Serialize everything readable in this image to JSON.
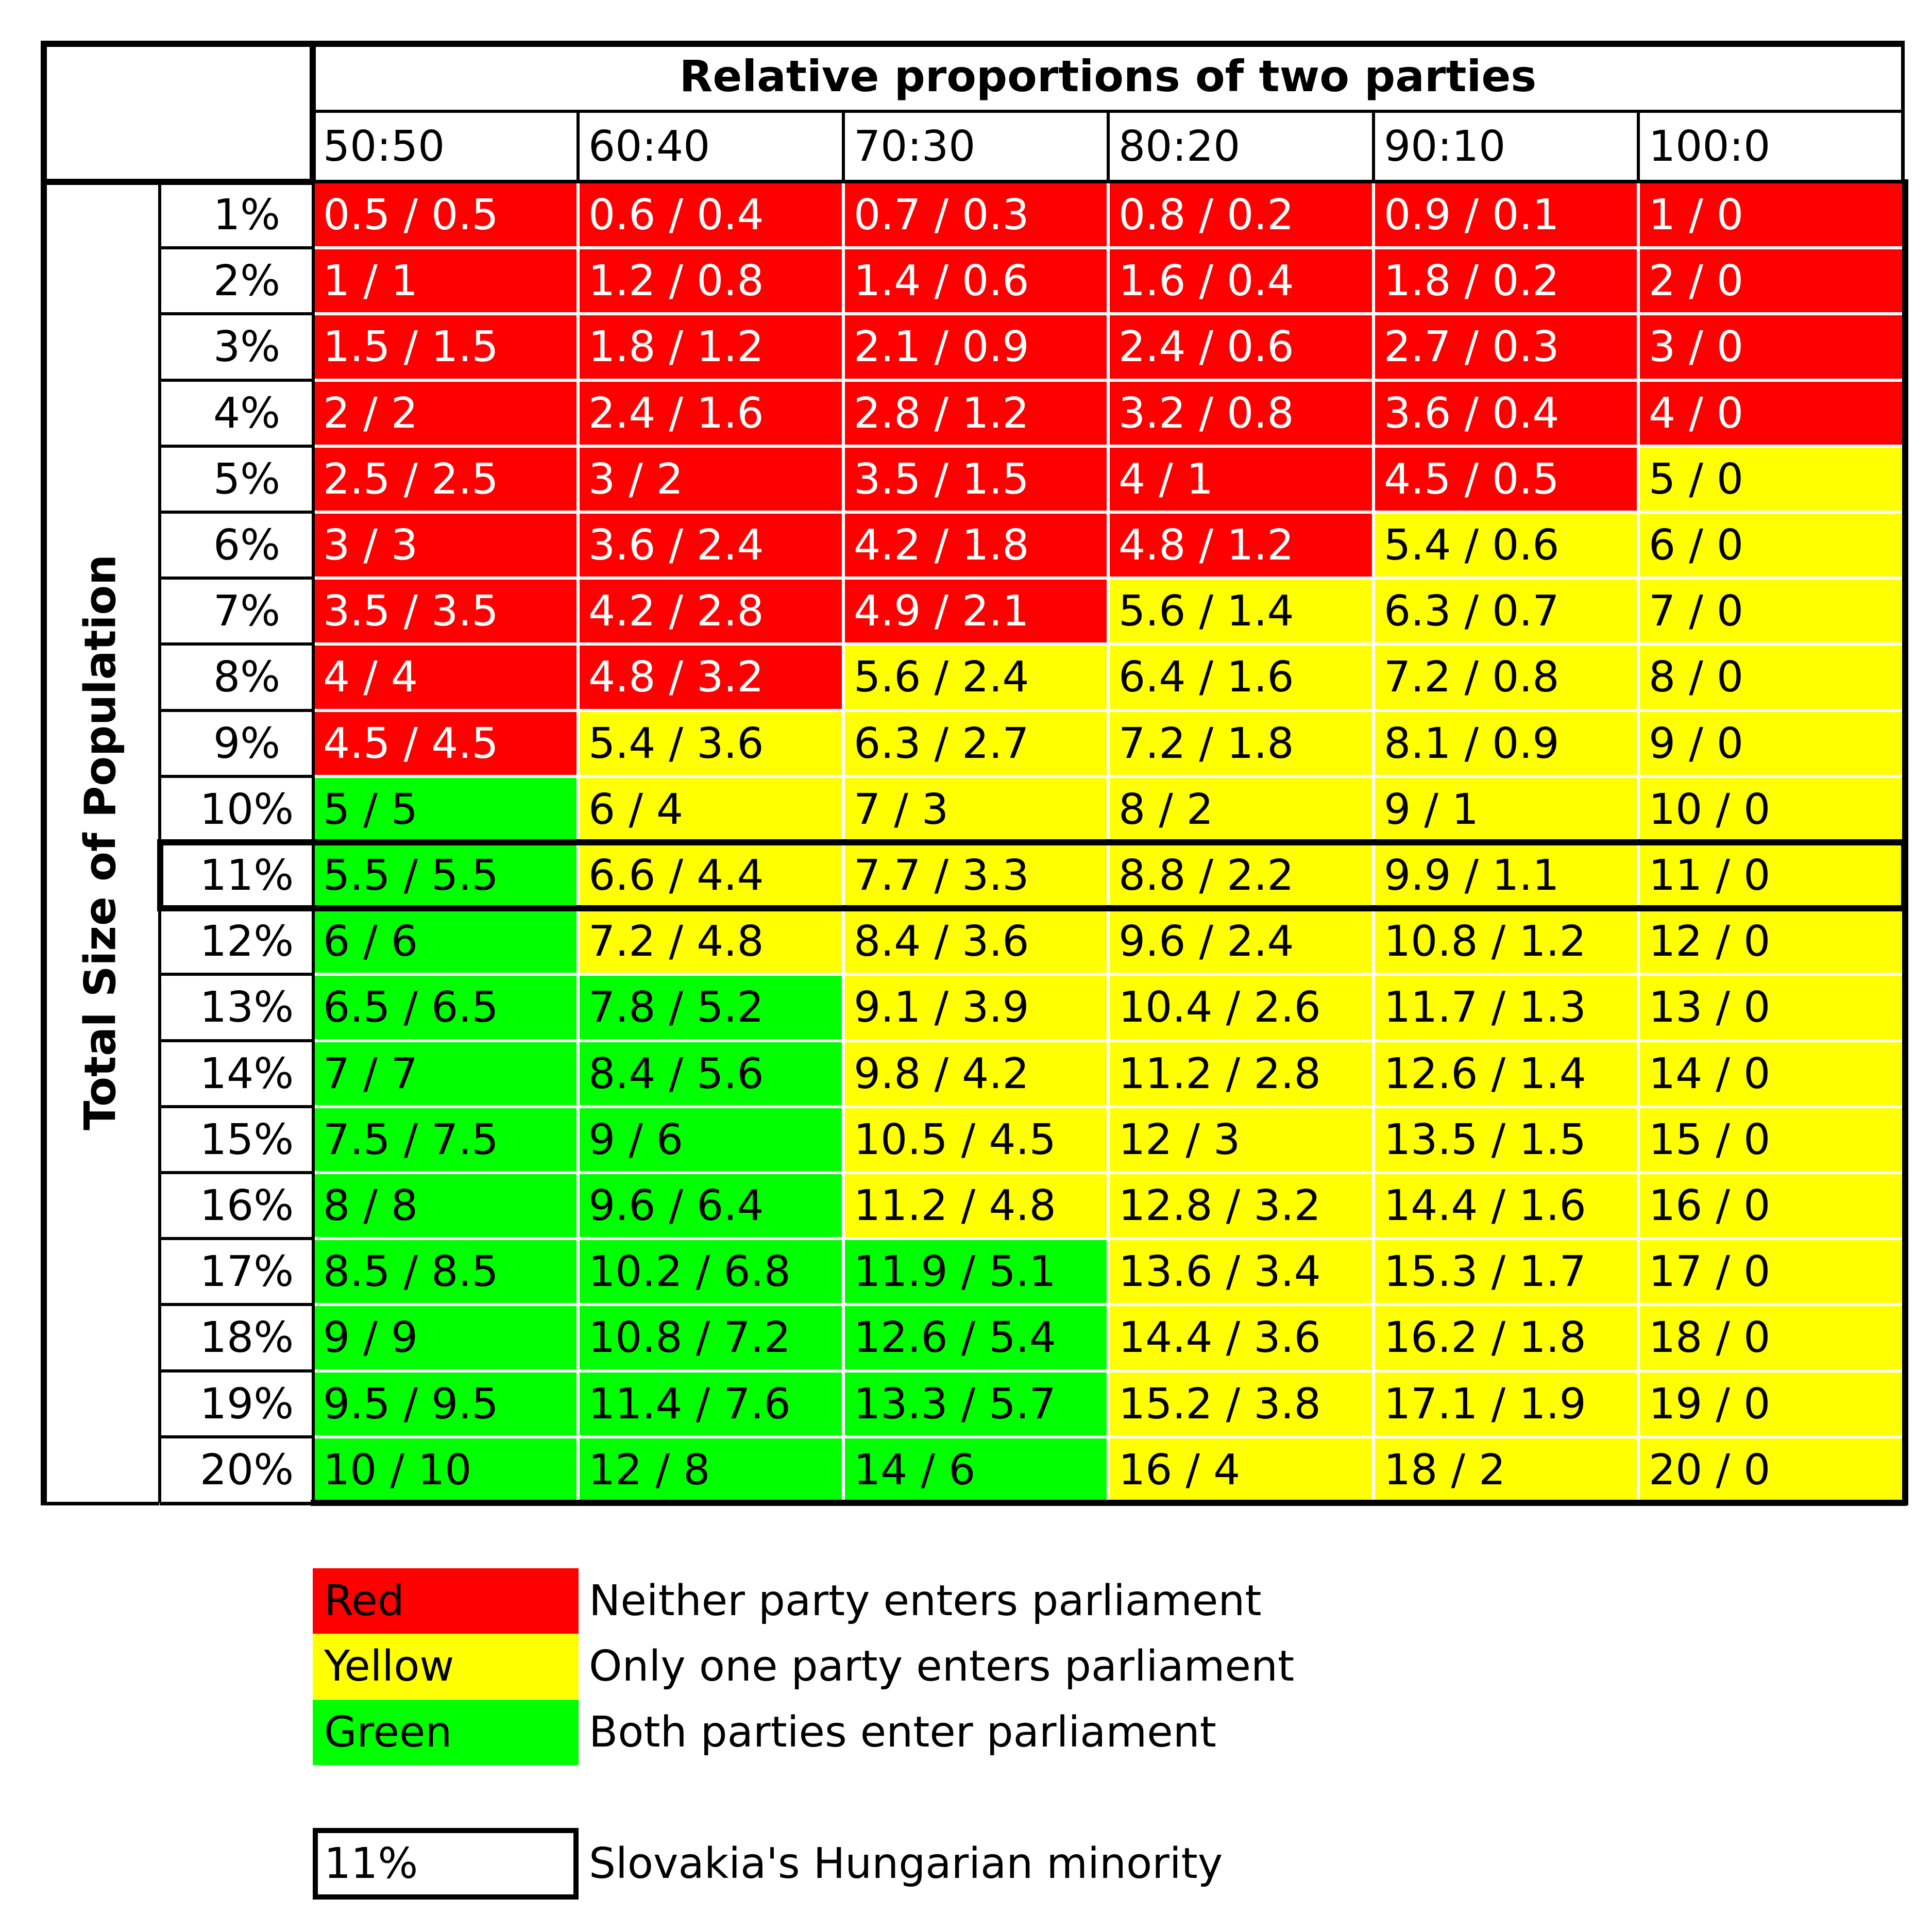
{
  "chart_data": {
    "type": "table",
    "title": "Relative proportions of two parties",
    "row_axis_label": "Total Size of Population",
    "columns": [
      "50:50",
      "60:40",
      "70:30",
      "80:20",
      "90:10",
      "100:0"
    ],
    "rows": [
      "1%",
      "2%",
      "3%",
      "4%",
      "5%",
      "6%",
      "7%",
      "8%",
      "9%",
      "10%",
      "11%",
      "12%",
      "13%",
      "14%",
      "15%",
      "16%",
      "17%",
      "18%",
      "19%",
      "20%"
    ],
    "cells": [
      [
        "0.5 / 0.5",
        "0.6 / 0.4",
        "0.7 / 0.3",
        "0.8 / 0.2",
        "0.9 / 0.1",
        "1 / 0"
      ],
      [
        "1 / 1",
        "1.2 / 0.8",
        "1.4 / 0.6",
        "1.6 / 0.4",
        "1.8 / 0.2",
        "2 / 0"
      ],
      [
        "1.5 / 1.5",
        "1.8 / 1.2",
        "2.1 / 0.9",
        "2.4 / 0.6",
        "2.7 / 0.3",
        "3 / 0"
      ],
      [
        "2 / 2",
        "2.4 / 1.6",
        "2.8 / 1.2",
        "3.2 / 0.8",
        "3.6 / 0.4",
        "4 / 0"
      ],
      [
        "2.5 / 2.5",
        "3 / 2",
        "3.5 / 1.5",
        "4 / 1",
        "4.5 / 0.5",
        "5 / 0"
      ],
      [
        "3 / 3",
        "3.6 / 2.4",
        "4.2 / 1.8",
        "4.8 / 1.2",
        "5.4 / 0.6",
        "6 / 0"
      ],
      [
        "3.5 / 3.5",
        "4.2 / 2.8",
        "4.9 / 2.1",
        "5.6 / 1.4",
        "6.3 / 0.7",
        "7 / 0"
      ],
      [
        "4 / 4",
        "4.8 / 3.2",
        "5.6 / 2.4",
        "6.4 / 1.6",
        "7.2 / 0.8",
        "8 / 0"
      ],
      [
        "4.5 / 4.5",
        "5.4 / 3.6",
        "6.3 / 2.7",
        "7.2 / 1.8",
        "8.1 / 0.9",
        "9 / 0"
      ],
      [
        "5 / 5",
        "6 / 4",
        "7 / 3",
        "8 / 2",
        "9 / 1",
        "10 / 0"
      ],
      [
        "5.5 / 5.5",
        "6.6 / 4.4",
        "7.7 / 3.3",
        "8.8 / 2.2",
        "9.9 / 1.1",
        "11 / 0"
      ],
      [
        "6 / 6",
        "7.2 / 4.8",
        "8.4 / 3.6",
        "9.6 / 2.4",
        "10.8 / 1.2",
        "12 / 0"
      ],
      [
        "6.5 / 6.5",
        "7.8 / 5.2",
        "9.1 / 3.9",
        "10.4 / 2.6",
        "11.7 / 1.3",
        "13 / 0"
      ],
      [
        "7 / 7",
        "8.4 / 5.6",
        "9.8 / 4.2",
        "11.2 / 2.8",
        "12.6 / 1.4",
        "14 / 0"
      ],
      [
        "7.5 / 7.5",
        "9 / 6",
        "10.5 / 4.5",
        "12 / 3",
        "13.5 / 1.5",
        "15 / 0"
      ],
      [
        "8 / 8",
        "9.6 / 6.4",
        "11.2 / 4.8",
        "12.8 / 3.2",
        "14.4 / 1.6",
        "16 / 0"
      ],
      [
        "8.5 / 8.5",
        "10.2 / 6.8",
        "11.9 / 5.1",
        "13.6 / 3.4",
        "15.3 / 1.7",
        "17 / 0"
      ],
      [
        "9 / 9",
        "10.8 / 7.2",
        "12.6 / 5.4",
        "14.4 / 3.6",
        "16.2 / 1.8",
        "18 / 0"
      ],
      [
        "9.5 / 9.5",
        "11.4 / 7.6",
        "13.3 / 5.7",
        "15.2 / 3.8",
        "17.1 / 1.9",
        "19 / 0"
      ],
      [
        "10 / 10",
        "12 / 8",
        "14 / 6",
        "16 / 4",
        "18 / 2",
        "20 / 0"
      ]
    ],
    "cell_status": [
      [
        "red",
        "red",
        "red",
        "red",
        "red",
        "red"
      ],
      [
        "red",
        "red",
        "red",
        "red",
        "red",
        "red"
      ],
      [
        "red",
        "red",
        "red",
        "red",
        "red",
        "red"
      ],
      [
        "red",
        "red",
        "red",
        "red",
        "red",
        "red"
      ],
      [
        "red",
        "red",
        "red",
        "red",
        "red",
        "yellow"
      ],
      [
        "red",
        "red",
        "red",
        "red",
        "yellow",
        "yellow"
      ],
      [
        "red",
        "red",
        "red",
        "yellow",
        "yellow",
        "yellow"
      ],
      [
        "red",
        "red",
        "yellow",
        "yellow",
        "yellow",
        "yellow"
      ],
      [
        "red",
        "yellow",
        "yellow",
        "yellow",
        "yellow",
        "yellow"
      ],
      [
        "green",
        "yellow",
        "yellow",
        "yellow",
        "yellow",
        "yellow"
      ],
      [
        "green",
        "yellow",
        "yellow",
        "yellow",
        "yellow",
        "yellow"
      ],
      [
        "green",
        "yellow",
        "yellow",
        "yellow",
        "yellow",
        "yellow"
      ],
      [
        "green",
        "green",
        "yellow",
        "yellow",
        "yellow",
        "yellow"
      ],
      [
        "green",
        "green",
        "yellow",
        "yellow",
        "yellow",
        "yellow"
      ],
      [
        "green",
        "green",
        "yellow",
        "yellow",
        "yellow",
        "yellow"
      ],
      [
        "green",
        "green",
        "yellow",
        "yellow",
        "yellow",
        "yellow"
      ],
      [
        "green",
        "green",
        "green",
        "yellow",
        "yellow",
        "yellow"
      ],
      [
        "green",
        "green",
        "green",
        "yellow",
        "yellow",
        "yellow"
      ],
      [
        "green",
        "green",
        "green",
        "yellow",
        "yellow",
        "yellow"
      ],
      [
        "green",
        "green",
        "green",
        "yellow",
        "yellow",
        "yellow"
      ]
    ],
    "colors": {
      "red": "#ff0000",
      "yellow": "#ffff00",
      "green": "#00ff00"
    },
    "text_colors": {
      "red": "#ffffff",
      "yellow": "#000000",
      "green": "#000000"
    },
    "highlight_row": "11%",
    "legend": [
      {
        "key": "red",
        "label": "Red",
        "description": "Neither party enters parliament"
      },
      {
        "key": "yellow",
        "label": "Yellow",
        "description": "Only one party enters parliament"
      },
      {
        "key": "green",
        "label": "Green",
        "description": "Both parties enter parliament"
      }
    ],
    "highlight_legend": {
      "label": "11%",
      "description": "Slovakia's Hungarian minority"
    }
  }
}
